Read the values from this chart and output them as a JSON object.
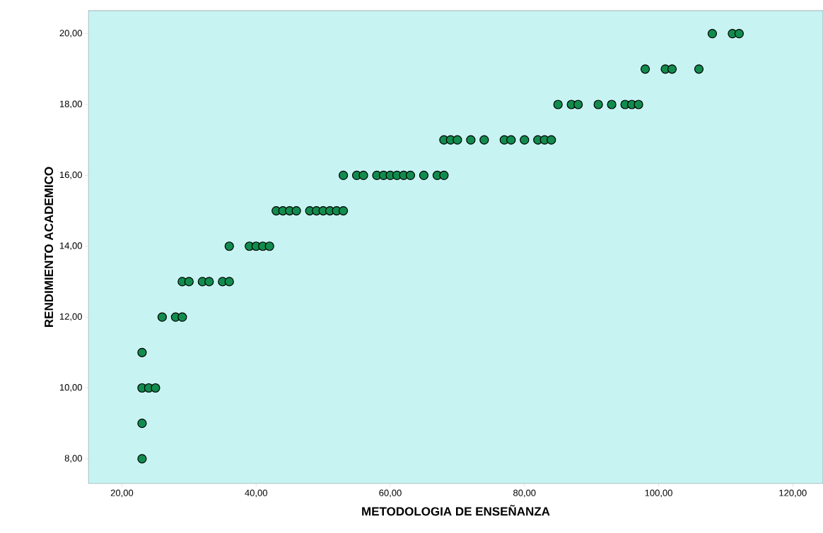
{
  "chart_data": {
    "type": "scatter",
    "xlabel": "METODOLOGIA DE ENSEÑANZA",
    "ylabel": "RENDIMIENTO ACADEMICO",
    "marker": "circle",
    "grid": false,
    "xlim": [
      15,
      124.5
    ],
    "ylim": [
      7.3,
      20.65
    ],
    "xticks": [
      {
        "value": 20,
        "label": "20,00"
      },
      {
        "value": 40,
        "label": "40,00"
      },
      {
        "value": 60,
        "label": "60,00"
      },
      {
        "value": 80,
        "label": "80,00"
      },
      {
        "value": 100,
        "label": "100,00"
      },
      {
        "value": 120,
        "label": "120,00"
      }
    ],
    "yticks": [
      {
        "value": 8,
        "label": "8,00"
      },
      {
        "value": 10,
        "label": "10,00"
      },
      {
        "value": 12,
        "label": "12,00"
      },
      {
        "value": 14,
        "label": "14,00"
      },
      {
        "value": 16,
        "label": "16,00"
      },
      {
        "value": 18,
        "label": "18,00"
      },
      {
        "value": 20,
        "label": "20,00"
      }
    ],
    "series": [
      {
        "color": "#118c4e",
        "x": [
          23,
          23,
          23,
          24,
          25,
          23,
          26,
          28,
          29,
          29,
          30,
          32,
          33,
          35,
          36,
          36,
          39,
          40,
          41,
          42,
          43,
          44,
          45,
          46,
          48,
          49,
          50,
          51,
          52,
          53,
          53,
          55,
          56,
          58,
          59,
          60,
          61,
          62,
          63,
          65,
          67,
          68,
          68,
          69,
          70,
          72,
          74,
          77,
          78,
          80,
          82,
          83,
          84,
          85,
          87,
          88,
          91,
          93,
          95,
          96,
          97,
          98,
          101,
          102,
          106,
          108,
          111,
          112
        ],
        "values": [
          8,
          9,
          10,
          10,
          10,
          11,
          12,
          12,
          12,
          13,
          13,
          13,
          13,
          13,
          13,
          14,
          14,
          14,
          14,
          14,
          15,
          15,
          15,
          15,
          15,
          15,
          15,
          15,
          15,
          15,
          16,
          16,
          16,
          16,
          16,
          16,
          16,
          16,
          16,
          16,
          16,
          16,
          17,
          17,
          17,
          17,
          17,
          17,
          17,
          17,
          17,
          17,
          17,
          18,
          18,
          18,
          18,
          18,
          18,
          18,
          18,
          19,
          19,
          19,
          19,
          20,
          20,
          20
        ]
      }
    ]
  }
}
